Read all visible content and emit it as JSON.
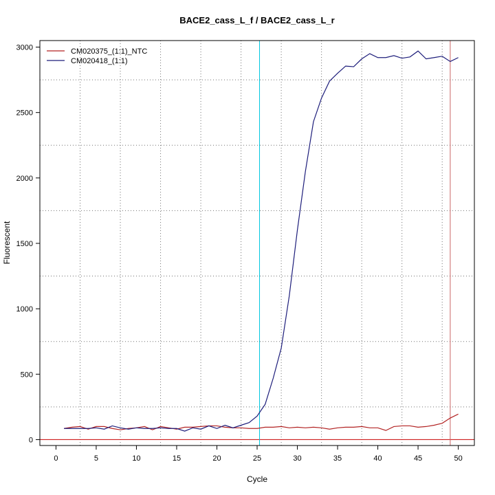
{
  "chart_data": {
    "type": "line",
    "title": "BACE2_cass_L_f / BACE2_cass_L_r",
    "xlabel": "Cycle",
    "ylabel": "Fluorescent",
    "xlim": [
      -2,
      52
    ],
    "ylim": [
      -45,
      3050
    ],
    "x_ticks": [
      0,
      5,
      10,
      15,
      20,
      25,
      30,
      35,
      40,
      45,
      50
    ],
    "y_ticks": [
      0,
      500,
      1000,
      1500,
      2000,
      2500,
      3000
    ],
    "grid": {
      "vertical": [
        3,
        8,
        13,
        18,
        23,
        28,
        33,
        38,
        43,
        48
      ],
      "horizontal": [
        250,
        750,
        1250,
        1750,
        2250,
        2750
      ],
      "style": "dotted"
    },
    "legend_position": "top-left",
    "threshold_cycle_line": {
      "x": 25.3,
      "color": "#00c8e0"
    },
    "end_cycle_line": {
      "x": 49,
      "color": "#c86464"
    },
    "baseline": {
      "y": 0,
      "color": "#c80000"
    },
    "x": [
      1,
      2,
      3,
      4,
      5,
      6,
      7,
      8,
      9,
      10,
      11,
      12,
      13,
      14,
      15,
      16,
      17,
      18,
      19,
      20,
      21,
      22,
      23,
      24,
      25,
      26,
      27,
      28,
      29,
      30,
      31,
      32,
      33,
      34,
      35,
      36,
      37,
      38,
      39,
      40,
      41,
      42,
      43,
      44,
      45,
      46,
      47,
      48,
      49,
      50
    ],
    "series": [
      {
        "name": "CM020375_(1:1)_NTC",
        "color": "#b22222",
        "values": [
          85,
          95,
          100,
          80,
          100,
          100,
          85,
          75,
          85,
          90,
          100,
          75,
          100,
          90,
          80,
          95,
          95,
          100,
          105,
          105,
          95,
          90,
          90,
          85,
          85,
          95,
          95,
          100,
          90,
          95,
          90,
          95,
          90,
          80,
          90,
          95,
          95,
          100,
          90,
          90,
          70,
          100,
          105,
          105,
          95,
          100,
          110,
          125,
          165,
          195
        ]
      },
      {
        "name": "CM020418_(1:1)",
        "color": "#1c1c7a",
        "values": [
          85,
          85,
          85,
          85,
          90,
          80,
          105,
          90,
          80,
          90,
          85,
          85,
          90,
          85,
          85,
          65,
          90,
          80,
          105,
          85,
          110,
          90,
          110,
          130,
          180,
          270,
          470,
          700,
          1100,
          1600,
          2050,
          2430,
          2610,
          2740,
          2800,
          2855,
          2850,
          2910,
          2950,
          2920,
          2920,
          2935,
          2915,
          2925,
          2970,
          2910,
          2920,
          2930,
          2890,
          2920
        ]
      }
    ]
  }
}
